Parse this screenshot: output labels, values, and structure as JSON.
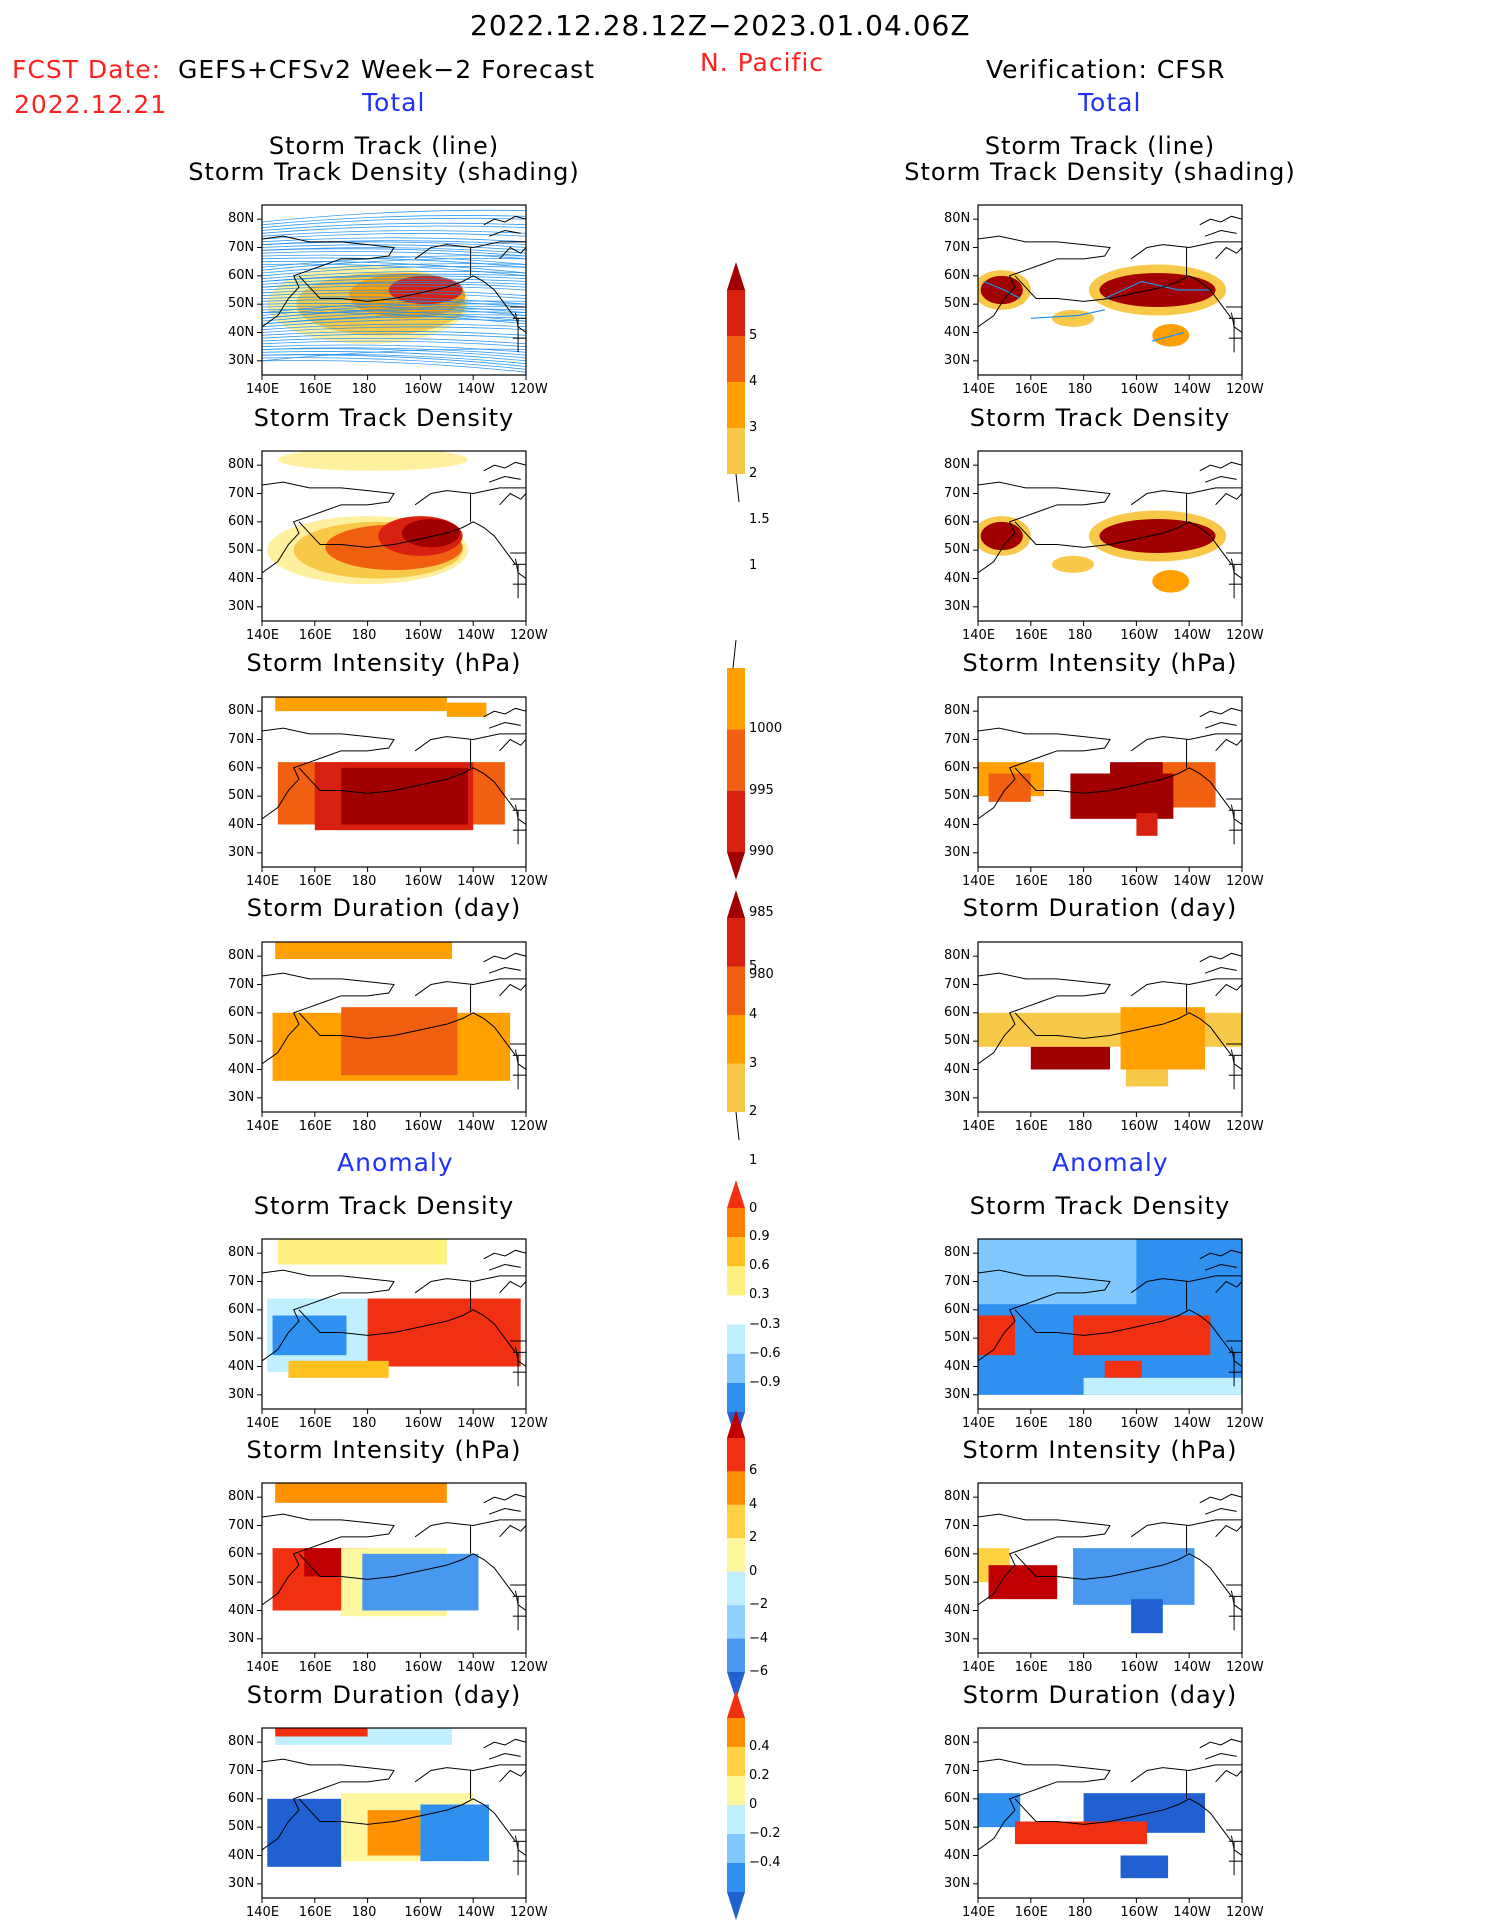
{
  "header": {
    "period": "2022.12.28.12Z−2023.01.04.06Z",
    "fcst_label": "FCST Date:",
    "fcst_date": "2022.12.21",
    "forecast_name": "GEFS+CFSv2 Week−2 Forecast",
    "region": "N. Pacific",
    "verification": "Verification: CFSR"
  },
  "sections": {
    "total": "Total",
    "anomaly": "Anomaly"
  },
  "panel_titles": {
    "track_line": "Storm Track (line)",
    "track_shading": "Storm Track Density (shading)",
    "density": "Storm Track Density",
    "intensity": "Storm Intensity (hPa)",
    "duration": "Storm Duration (day)"
  },
  "axes": {
    "lat_ticks": [
      "80N",
      "70N",
      "60N",
      "50N",
      "40N",
      "30N"
    ],
    "lon_ticks": [
      "140E",
      "160E",
      "180",
      "160W",
      "140W",
      "120W"
    ]
  },
  "colorbars": [
    {
      "id": "density_total",
      "labels": [
        "5",
        "4",
        "3",
        "2",
        "1.5",
        "1"
      ],
      "colors": [
        "#a00000",
        "#d82010",
        "#f06010",
        "#ffa000",
        "#f8c848",
        "#fff0a0"
      ]
    },
    {
      "id": "intensity_total",
      "labels": [
        "1000",
        "995",
        "990",
        "985",
        "980"
      ],
      "colors": [
        "#fff0a0",
        "#ffa000",
        "#f06010",
        "#d82010",
        "#a00000"
      ]
    },
    {
      "id": "duration_total",
      "labels": [
        "5",
        "4",
        "3",
        "2",
        "1",
        "0"
      ],
      "colors": [
        "#a00000",
        "#d82010",
        "#f06010",
        "#ffa000",
        "#f8c848",
        "#fff0a0"
      ]
    },
    {
      "id": "density_anom",
      "labels": [
        "0.9",
        "0.6",
        "0.3",
        "−0.3",
        "−0.6",
        "−0.9"
      ],
      "colors": [
        "#f03010",
        "#ff8000",
        "#ffc020",
        "#fff080",
        "#ffffff",
        "#c0f0ff",
        "#80c8ff",
        "#3090f0",
        "#2060d0"
      ]
    },
    {
      "id": "intensity_anom",
      "labels": [
        "6",
        "4",
        "2",
        "0",
        "−2",
        "−4",
        "−6"
      ],
      "colors": [
        "#c00000",
        "#f03010",
        "#ff9000",
        "#ffd040",
        "#fff6a0",
        "#c0f0ff",
        "#90d0ff",
        "#4898f0",
        "#2060d0"
      ]
    },
    {
      "id": "duration_anom",
      "labels": [
        "0.4",
        "0.2",
        "0",
        "−0.2",
        "−0.4"
      ],
      "colors": [
        "#f03010",
        "#ff9000",
        "#ffd040",
        "#fff6a0",
        "#c0f0ff",
        "#80c8ff",
        "#3090f0",
        "#2060d0"
      ]
    }
  ],
  "chart_data": {
    "type": "heatmap",
    "title": "2022.12.28.12Z−2023.01.04.06Z N. Pacific",
    "domain": {
      "lon_range": [
        "140E",
        "120W"
      ],
      "lat_range": [
        "25N",
        "85N"
      ]
    },
    "panels": [
      {
        "column": "GEFS+CFSv2 Week-2 Forecast",
        "section": "Total",
        "field": "Storm Track (line) / Storm Track Density (shading)",
        "core_region": "35N-65N, 150E-135W"
      },
      {
        "column": "Verification: CFSR",
        "section": "Total",
        "field": "Storm Track (line) / Storm Track Density (shading)",
        "core_region": "55N 145E; 55N 165W-140W; 40N 140W"
      },
      {
        "column": "GEFS+CFSv2 Week-2 Forecast",
        "section": "Total",
        "field": "Storm Track Density",
        "max_value_range": ">5",
        "max_location": "55N 155W"
      },
      {
        "column": "Verification: CFSR",
        "section": "Total",
        "field": "Storm Track Density",
        "max_value_range": ">5",
        "max_location": "55N 145E; 55N 155W"
      },
      {
        "column": "GEFS+CFSv2 Week-2 Forecast",
        "section": "Total",
        "field": "Storm Intensity (hPa)",
        "min_value_range": "<980",
        "min_location": "50N 170W"
      },
      {
        "column": "Verification: CFSR",
        "section": "Total",
        "field": "Storm Intensity (hPa)",
        "min_value_range": "<980",
        "min_location": "50N 160W"
      },
      {
        "column": "GEFS+CFSv2 Week-2 Forecast",
        "section": "Total",
        "field": "Storm Duration (day)",
        "value_range": "2-3"
      },
      {
        "column": "Verification: CFSR",
        "section": "Total",
        "field": "Storm Duration (day)",
        "value_range": "0-5"
      },
      {
        "column": "GEFS+CFSv2 Week-2 Forecast",
        "section": "Anomaly",
        "field": "Storm Track Density",
        "positive": "0.9 near 50N 150W",
        "negative": "-0.9 near 50N 160E"
      },
      {
        "column": "Verification: CFSR",
        "section": "Anomaly",
        "field": "Storm Track Density",
        "positive": "0.9 near 50N 150W",
        "negative": "-0.9 widespread"
      },
      {
        "column": "GEFS+CFSv2 Week-2 Forecast",
        "section": "Anomaly",
        "field": "Storm Intensity (hPa)",
        "positive": "6 near 50N 160E",
        "negative": "-6 near 50N 150W"
      },
      {
        "column": "Verification: CFSR",
        "section": "Anomaly",
        "field": "Storm Intensity (hPa)",
        "positive": "6 near 45N 165E",
        "negative": "-6 near 50N 150W"
      },
      {
        "column": "GEFS+CFSv2 Week-2 Forecast",
        "section": "Anomaly",
        "field": "Storm Duration (day)",
        "positive": "0.4 near 80N",
        "negative": "-0.4 near 50N 160E"
      },
      {
        "column": "Verification: CFSR",
        "section": "Anomaly",
        "field": "Storm Duration (day)",
        "positive": "0.4 near 45N 175W",
        "negative": "-0.4 near 50N 140W"
      }
    ]
  }
}
